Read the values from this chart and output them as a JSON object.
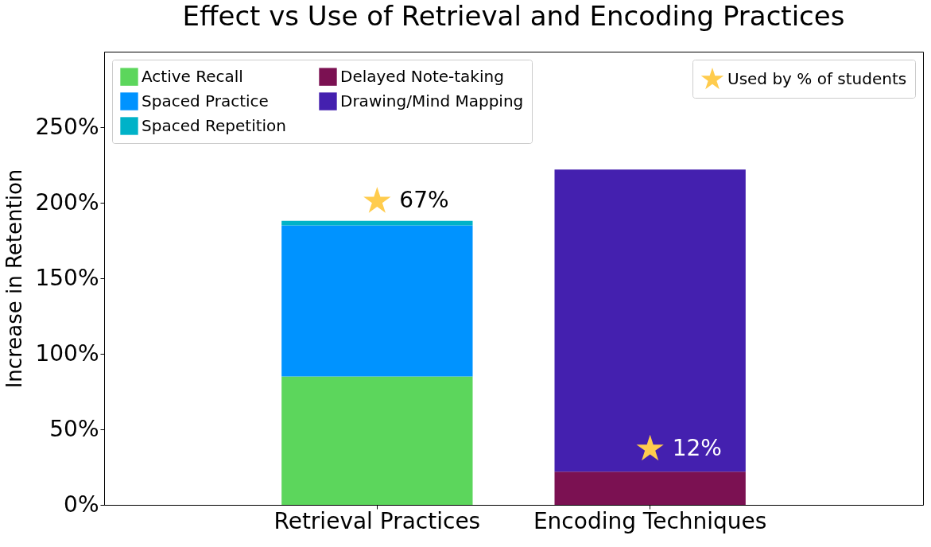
{
  "chart_data": {
    "type": "bar",
    "title": "Effect vs Use of Retrieval and Encoding Practices",
    "ylabel": "Increase in Retention",
    "categories": [
      "Retrieval Practices",
      "Encoding Techniques"
    ],
    "stacked": true,
    "series": [
      {
        "name": "Active Recall",
        "color": "#5cd65c",
        "values": [
          85,
          null
        ]
      },
      {
        "name": "Spaced Practice",
        "color": "#0093ff",
        "values": [
          100,
          null
        ]
      },
      {
        "name": "Spaced Repetition",
        "color": "#00b2c8",
        "values": [
          3,
          null
        ]
      },
      {
        "name": "Delayed Note-taking",
        "color": "#7b1152",
        "values": [
          null,
          22
        ]
      },
      {
        "name": "Drawing/Mind Mapping",
        "color": "#4420af",
        "values": [
          null,
          200
        ]
      },
      {
        "name": "Used by % of students",
        "type": "scatter",
        "marker": "star",
        "color": "#ffcc4d",
        "x": [
          "Retrieval Practices",
          "Encoding Techniques"
        ],
        "values": [
          201,
          37
        ]
      }
    ],
    "annotations": [
      {
        "text": "67%",
        "x": "Retrieval Practices",
        "y": 201
      },
      {
        "text": "12%",
        "x": "Encoding Techniques",
        "y": 37
      }
    ],
    "ylim": [
      0,
      300
    ],
    "yticks": [
      {
        "value": 0,
        "label": "0%"
      },
      {
        "value": 50,
        "label": "50%"
      },
      {
        "value": 100,
        "label": "100%"
      },
      {
        "value": 150,
        "label": "150%"
      },
      {
        "value": 200,
        "label": "200%"
      },
      {
        "value": 250,
        "label": "250%"
      }
    ],
    "grid": false,
    "legend": "top left"
  }
}
